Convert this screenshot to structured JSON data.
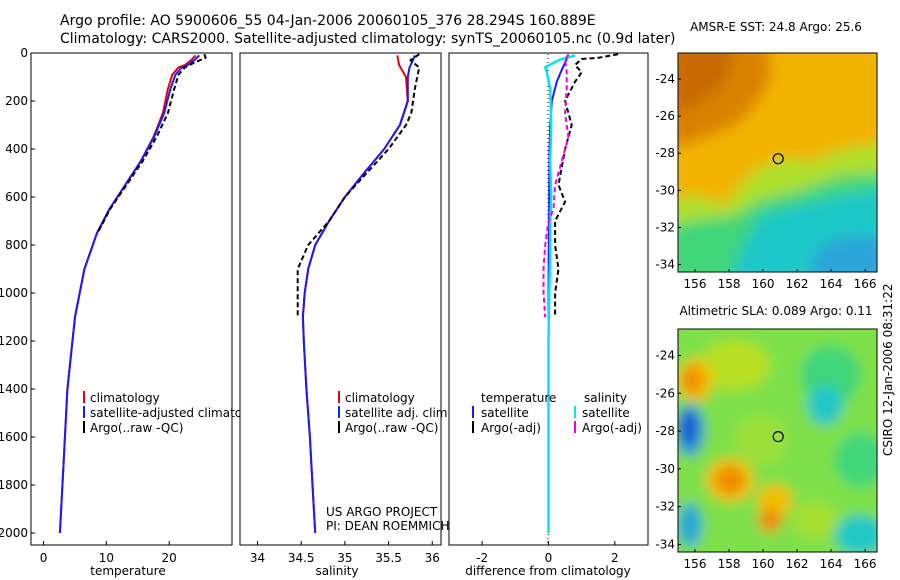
{
  "title": {
    "line1": "Argo profile: AO 5900606_55 04-Jan-2006 20060105_376 28.294S 160.889E",
    "line2": "Climatology: CARS2000. Satellite-adjusted climatology: synTS_20060105.nc (0.9d later)"
  },
  "colors": {
    "red": "#e8000b",
    "blue": "#1a1aff",
    "black": "#000000",
    "cyan": "#00e5ee",
    "magenta": "#ee00ee"
  },
  "chart_data": [
    {
      "type": "line",
      "title": "",
      "xlabel": "temperature",
      "ylabel": "",
      "xlim": [
        -2,
        30
      ],
      "ylim": [
        2050,
        0
      ],
      "xticks": [
        0,
        10,
        20
      ],
      "yticks": [
        0,
        200,
        400,
        600,
        800,
        1000,
        1200,
        1400,
        1600,
        1800,
        2000
      ],
      "legend": {
        "position": "bottom-right",
        "entries": [
          "climatology",
          "satellite-adjusted climatology",
          "Argo(..raw -QC)"
        ]
      },
      "series": [
        {
          "name": "climatology",
          "color": "red",
          "dash": "",
          "points": [
            [
              24.2,
              10
            ],
            [
              23.5,
              30
            ],
            [
              22.5,
              50
            ],
            [
              21.5,
              60
            ],
            [
              20.5,
              90
            ],
            [
              19.8,
              150
            ],
            [
              19,
              250
            ],
            [
              17.5,
              350
            ],
            [
              15.5,
              450
            ],
            [
              13,
              550
            ],
            [
              10.5,
              650
            ],
            [
              8.5,
              750
            ],
            [
              6.5,
              900
            ],
            [
              5,
              1100
            ],
            [
              3.8,
              1400
            ],
            [
              3.2,
              1700
            ],
            [
              2.6,
              2000
            ]
          ]
        },
        {
          "name": "satellite-adjusted climatology",
          "color": "blue",
          "dash": "",
          "points": [
            [
              24.8,
              10
            ],
            [
              24,
              30
            ],
            [
              23,
              50
            ],
            [
              22,
              60
            ],
            [
              21,
              90
            ],
            [
              20.2,
              150
            ],
            [
              19.2,
              250
            ],
            [
              17.6,
              350
            ],
            [
              15.5,
              450
            ],
            [
              13,
              550
            ],
            [
              10.5,
              650
            ],
            [
              8.5,
              750
            ],
            [
              6.5,
              900
            ],
            [
              5,
              1100
            ],
            [
              3.8,
              1400
            ],
            [
              3.2,
              1700
            ],
            [
              2.6,
              2000
            ]
          ]
        },
        {
          "name": "Argo(..raw -QC)",
          "color": "black",
          "dash": "5,3",
          "points": [
            [
              25.6,
              5
            ],
            [
              25.8,
              20
            ],
            [
              24,
              40
            ],
            [
              22.5,
              60
            ],
            [
              21.5,
              90
            ],
            [
              20.8,
              150
            ],
            [
              19.8,
              250
            ],
            [
              18,
              350
            ],
            [
              15.8,
              450
            ],
            [
              13.2,
              550
            ],
            [
              10.6,
              650
            ],
            [
              8.6,
              750
            ]
          ]
        }
      ]
    },
    {
      "type": "line",
      "title": "",
      "xlabel": "salinity",
      "ylabel": "",
      "xlim": [
        33.8,
        36.1
      ],
      "ylim": [
        2050,
        0
      ],
      "xticks": [
        34,
        34.5,
        35,
        35.5,
        36
      ],
      "legend": {
        "position": "bottom-right",
        "entries": [
          "climatology",
          "satellite adj. clim.",
          "Argo(..raw -QC)"
        ]
      },
      "annotations": [
        "US ARGO PROJECT",
        "PI: DEAN ROEMMICH"
      ],
      "series": [
        {
          "name": "climatology",
          "color": "red",
          "dash": "",
          "points": [
            [
              35.6,
              10
            ],
            [
              35.62,
              50
            ],
            [
              35.7,
              100
            ],
            [
              35.72,
              200
            ],
            [
              35.63,
              300
            ],
            [
              35.45,
              400
            ],
            [
              35.22,
              500
            ],
            [
              35.0,
              600
            ],
            [
              34.82,
              700
            ],
            [
              34.66,
              800
            ],
            [
              34.58,
              900
            ],
            [
              34.54,
              1000
            ],
            [
              34.52,
              1100
            ],
            [
              34.53,
              1200
            ],
            [
              34.56,
              1400
            ],
            [
              34.6,
              1600
            ],
            [
              34.63,
              1800
            ],
            [
              34.66,
              2000
            ]
          ]
        },
        {
          "name": "satellite adj. clim.",
          "color": "blue",
          "dash": "",
          "points": [
            [
              35.8,
              10
            ],
            [
              35.78,
              30
            ],
            [
              35.74,
              60
            ],
            [
              35.72,
              100
            ],
            [
              35.72,
              200
            ],
            [
              35.63,
              300
            ],
            [
              35.45,
              400
            ],
            [
              35.22,
              500
            ],
            [
              35.0,
              600
            ],
            [
              34.82,
              700
            ],
            [
              34.66,
              800
            ],
            [
              34.58,
              900
            ],
            [
              34.54,
              1000
            ],
            [
              34.52,
              1100
            ],
            [
              34.53,
              1200
            ],
            [
              34.56,
              1400
            ],
            [
              34.6,
              1600
            ],
            [
              34.63,
              1800
            ],
            [
              34.66,
              2000
            ]
          ]
        },
        {
          "name": "Argo(..raw -QC)",
          "color": "black",
          "dash": "5,3",
          "points": [
            [
              35.85,
              5
            ],
            [
              35.75,
              30
            ],
            [
              35.85,
              60
            ],
            [
              35.8,
              150
            ],
            [
              35.76,
              250
            ],
            [
              35.7,
              300
            ],
            [
              35.5,
              400
            ],
            [
              35.25,
              500
            ],
            [
              35.0,
              600
            ],
            [
              34.82,
              700
            ],
            [
              34.58,
              800
            ],
            [
              34.46,
              900
            ],
            [
              34.46,
              1000
            ],
            [
              34.46,
              1100
            ]
          ]
        }
      ]
    },
    {
      "type": "line",
      "title": "",
      "xlabel": "difference from climatology",
      "ylabel": "",
      "xlim": [
        -3,
        3
      ],
      "ylim": [
        2050,
        0
      ],
      "xticks": [
        -2,
        0,
        2
      ],
      "legend": {
        "position": "bottom",
        "headers": [
          "temperature",
          "salinity"
        ],
        "entries": [
          "satellite",
          "Argo(-adj)",
          "satellite",
          "Argo(-adj)"
        ]
      },
      "series": [
        {
          "name": "temperature satellite",
          "color": "blue",
          "dash": "",
          "points": [
            [
              0.6,
              10
            ],
            [
              0.5,
              40
            ],
            [
              0.4,
              70
            ],
            [
              0.25,
              120
            ],
            [
              0.1,
              200
            ],
            [
              0.05,
              300
            ],
            [
              0.03,
              400
            ],
            [
              0.02,
              600
            ],
            [
              0,
              1000
            ],
            [
              0,
              2000
            ]
          ]
        },
        {
          "name": "temperature Argo(-adj)",
          "color": "black",
          "dash": "5,3",
          "points": [
            [
              2.1,
              5
            ],
            [
              1.5,
              20
            ],
            [
              1.0,
              25
            ],
            [
              0.8,
              50
            ],
            [
              1.0,
              80
            ],
            [
              0.8,
              120
            ],
            [
              0.5,
              200
            ],
            [
              0.7,
              300
            ],
            [
              0.5,
              400
            ],
            [
              0.3,
              550
            ],
            [
              0.5,
              620
            ],
            [
              0.2,
              700
            ],
            [
              0.2,
              800
            ],
            [
              0.3,
              900
            ],
            [
              0.2,
              1000
            ],
            [
              0.2,
              1100
            ]
          ]
        },
        {
          "name": "salinity satellite",
          "color": "cyan",
          "dash": "",
          "points": [
            [
              0.8,
              10
            ],
            [
              0.3,
              30
            ],
            [
              -0.1,
              60
            ],
            [
              -0.05,
              80
            ],
            [
              0.05,
              150
            ],
            [
              0.08,
              300
            ],
            [
              0.05,
              450
            ],
            [
              0.08,
              600
            ],
            [
              0.05,
              700
            ],
            [
              0.05,
              850
            ],
            [
              0.02,
              1000
            ],
            [
              0,
              1200
            ],
            [
              0,
              2000
            ]
          ]
        },
        {
          "name": "salinity Argo(-adj)",
          "color": "magenta",
          "dash": "5,3",
          "points": [
            [
              0.6,
              5
            ],
            [
              0.5,
              30
            ],
            [
              0.55,
              80
            ],
            [
              0.55,
              150
            ],
            [
              0.5,
              250
            ],
            [
              0.6,
              350
            ],
            [
              0.4,
              450
            ],
            [
              0.2,
              550
            ],
            [
              0.15,
              650
            ],
            [
              0,
              700
            ],
            [
              -0.1,
              800
            ],
            [
              -0.15,
              900
            ],
            [
              -0.15,
              1000
            ],
            [
              -0.1,
              1100
            ]
          ]
        }
      ]
    }
  ],
  "maps": [
    {
      "title": "AMSR-E SST: 24.8 Argo: 25.6",
      "xticks": [
        156,
        158,
        160,
        162,
        164,
        166
      ],
      "yticks": [
        -24,
        -26,
        -28,
        -30,
        -32,
        -34
      ],
      "xlim": [
        155,
        166.7
      ],
      "ylim": [
        -34.4,
        -22.6
      ],
      "marker": [
        160.889,
        -28.294
      ]
    },
    {
      "title": "Altimetric SLA: 0.089 Argo: 0.11",
      "xticks": [
        156,
        158,
        160,
        162,
        164,
        166
      ],
      "yticks": [
        -24,
        -26,
        -28,
        -30,
        -32,
        -34
      ],
      "xlim": [
        155,
        166.7
      ],
      "ylim": [
        -34.4,
        -22.6
      ],
      "marker": [
        160.889,
        -28.294
      ]
    }
  ],
  "side_label": "CSIRO 12-Jan-2006 08:31:22"
}
